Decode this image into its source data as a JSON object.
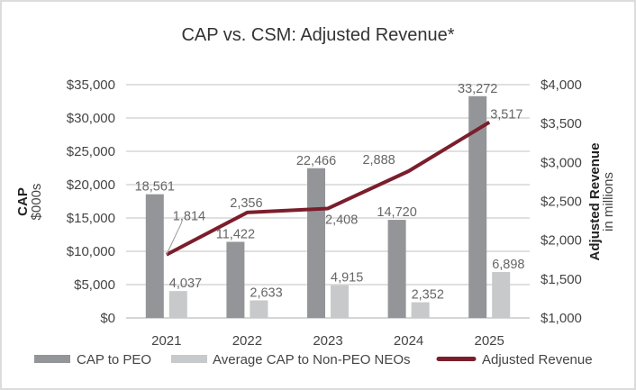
{
  "chart_data": {
    "type": "bar",
    "title": "CAP vs. CSM: Adjusted Revenue*",
    "categories": [
      "2021",
      "2022",
      "2023",
      "2024",
      "2025"
    ],
    "series": [
      {
        "name": "CAP to PEO",
        "type": "bar",
        "axis": "left",
        "color": "#939598",
        "values": [
          18561,
          11422,
          22466,
          14720,
          33272
        ],
        "labels": [
          "18,561",
          "11,422",
          "22,466",
          "14,720",
          "33,272"
        ]
      },
      {
        "name": "Average CAP to Non-PEO NEOs",
        "type": "bar",
        "axis": "left",
        "color": "#c8c9cb",
        "values": [
          4037,
          2633,
          4915,
          2352,
          6898
        ],
        "labels": [
          "4,037",
          "2,633",
          "4,915",
          "2,352",
          "6,898"
        ]
      },
      {
        "name": "Adjusted Revenue",
        "type": "line",
        "axis": "right",
        "color": "#7b1e2c",
        "values": [
          1814,
          2356,
          2408,
          2888,
          3517
        ],
        "labels": [
          "1,814",
          "2,356",
          "2,408",
          "2,888",
          "3,517"
        ]
      }
    ],
    "ylabel": "CAP",
    "ylabel_sub": "$000s",
    "ylim": [
      0,
      35000
    ],
    "yticks": [
      "$0",
      "$5,000",
      "$10,000",
      "$15,000",
      "$20,000",
      "$25,000",
      "$30,000",
      "$35,000"
    ],
    "y2label": "Adjusted Revenue",
    "y2label_sub": "in millions",
    "y2lim": [
      1000,
      4000
    ],
    "y2ticks": [
      "$1,000",
      "$1,500",
      "$2,000",
      "$2,500",
      "$3,000",
      "$3,500",
      "$4,000"
    ],
    "grid": true,
    "legend": "bottom"
  }
}
